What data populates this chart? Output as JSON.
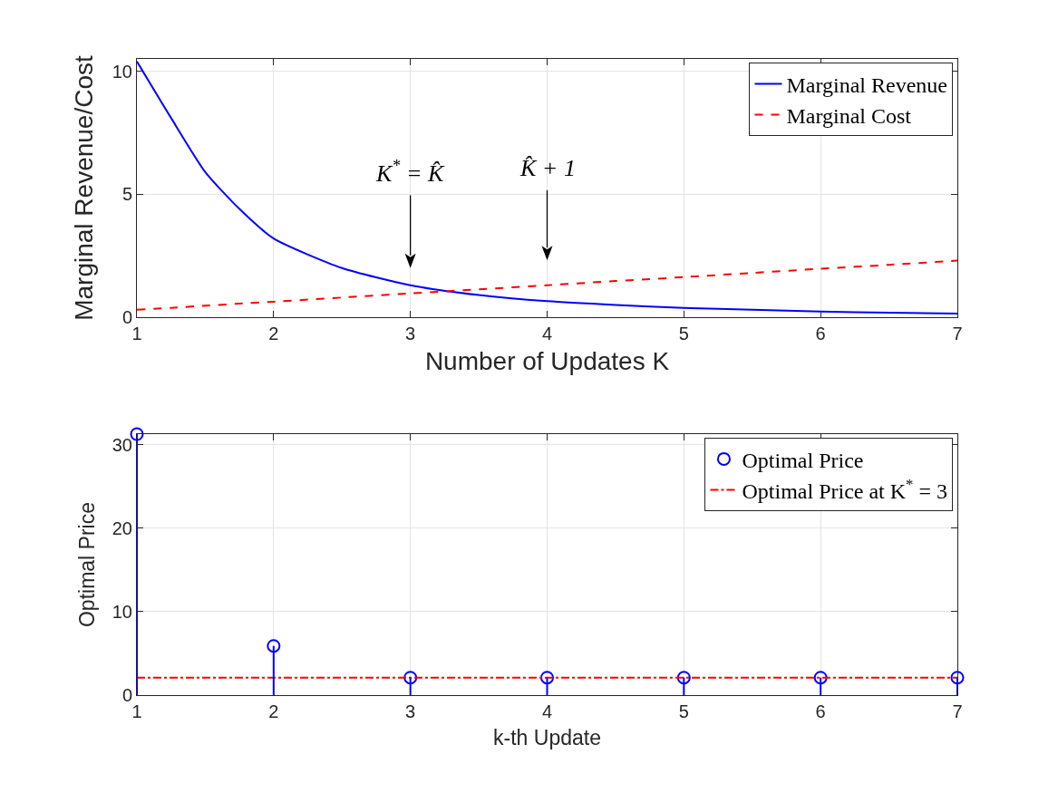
{
  "chart_data": [
    {
      "type": "line",
      "xlabel": "Number of Updates K",
      "ylabel": "Marginal Revenue/Cost",
      "x": [
        1,
        1.25,
        1.5,
        1.75,
        2,
        2.5,
        3,
        3.5,
        4,
        4.5,
        5,
        5.5,
        6,
        6.5,
        7
      ],
      "series": [
        {
          "name": "Marginal Revenue",
          "color": "#0000ff",
          "line_style": "solid",
          "values": [
            10.4,
            8.1,
            5.9,
            4.4,
            3.2,
            2.0,
            1.3,
            0.9,
            0.65,
            0.5,
            0.38,
            0.3,
            0.23,
            0.18,
            0.15
          ]
        },
        {
          "name": "Marginal Cost",
          "color": "#ff0000",
          "line_style": "dashed",
          "values": [
            0.3,
            0.38,
            0.47,
            0.55,
            0.63,
            0.8,
            0.97,
            1.13,
            1.3,
            1.47,
            1.63,
            1.8,
            1.97,
            2.13,
            2.3
          ]
        }
      ],
      "annotations": [
        "K$^{*}$ = K̂",
        "K̂ + 1"
      ],
      "xlim": [
        1,
        7
      ],
      "xticks": [
        1,
        2,
        3,
        4,
        5,
        6,
        7
      ],
      "ylim": [
        0,
        10.5
      ],
      "yticks": [
        0,
        5,
        10
      ],
      "grid": true,
      "legend": "top right"
    },
    {
      "type": "lollipop",
      "xlabel": "k-th Update",
      "ylabel": "Optimal Price",
      "x": [
        1,
        2,
        3,
        4,
        5,
        6,
        7
      ],
      "series": [
        {
          "name": "Optimal Price",
          "color": "#0000ff",
          "marker": "circle",
          "values": [
            31.3,
            5.9,
            2.1,
            2.1,
            2.1,
            2.1,
            2.1
          ]
        },
        {
          "name": "Optimal Price at K$^{*}$ = 3",
          "type": "line",
          "color": "#ff0000",
          "line_style": "dashdot",
          "marker": "none",
          "x": [
            1,
            7
          ],
          "values": [
            2.1,
            2.1
          ]
        }
      ],
      "xlim": [
        1,
        7
      ],
      "xticks": [
        1,
        2,
        3,
        4,
        5,
        6,
        7
      ],
      "ylim": [
        0,
        31.3
      ],
      "yticks": [
        0,
        10,
        20,
        30
      ],
      "grid": true,
      "legend": "top right"
    }
  ]
}
